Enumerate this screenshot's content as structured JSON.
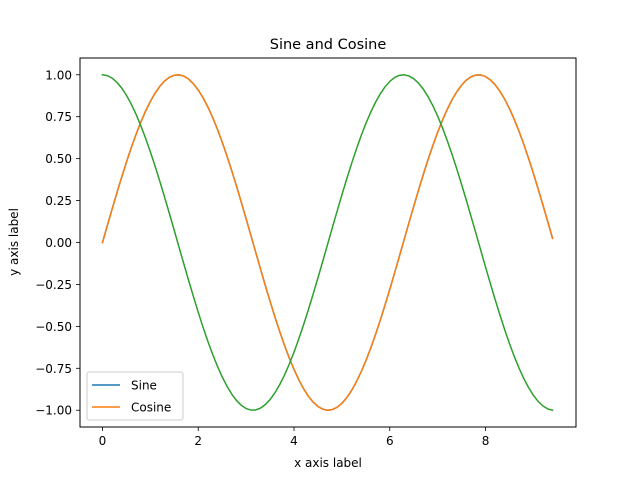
{
  "chart_data": {
    "type": "line",
    "title": "Sine and Cosine",
    "xlabel": "x axis label",
    "ylabel": "y axis label",
    "xlim": [
      -0.47,
      9.89
    ],
    "ylim": [
      -1.1,
      1.1
    ],
    "x_ticks": [
      0,
      2,
      4,
      6,
      8
    ],
    "x_tick_labels": [
      "0",
      "2",
      "4",
      "6",
      "8"
    ],
    "y_ticks": [
      -1.0,
      -0.75,
      -0.5,
      -0.25,
      0.0,
      0.25,
      0.5,
      0.75,
      1.0
    ],
    "y_tick_labels": [
      "−1.00",
      "−0.75",
      "−0.50",
      "−0.25",
      "0.00",
      "0.25",
      "0.50",
      "0.75",
      "1.00"
    ],
    "grid": false,
    "legend_placement": "lower left",
    "x_range": [
      0,
      9.42
    ],
    "x_step": 0.1,
    "series": [
      {
        "name": "Sine",
        "function": "sin",
        "color": "#1f77b4",
        "in_legend": true
      },
      {
        "name": "Cosine",
        "function": "sin",
        "color": "#ff7f0e",
        "in_legend": true
      },
      {
        "name": "",
        "function": "cos",
        "color": "#2ca02c",
        "in_legend": false
      }
    ]
  }
}
